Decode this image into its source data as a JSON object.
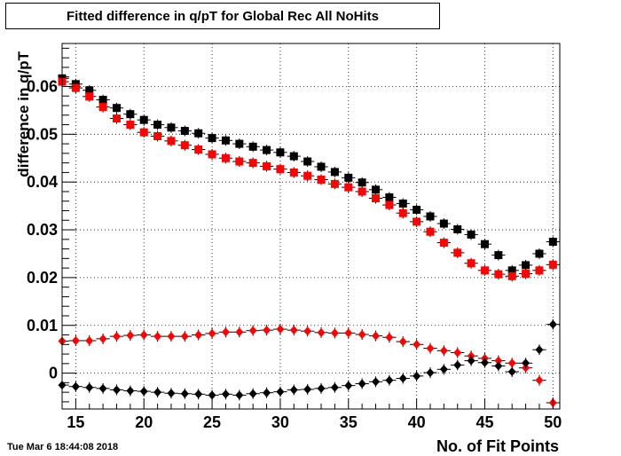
{
  "chart_data": {
    "type": "scatter",
    "title": "Fitted difference in q/pT for Global Rec All NoHits",
    "xlabel": "No. of Fit Points",
    "ylabel": "difference in q/pT",
    "xlim": [
      14,
      50.5
    ],
    "ylim": [
      -0.0075,
      0.069
    ],
    "xticks": [
      15,
      20,
      25,
      30,
      35,
      40,
      45,
      50
    ],
    "xtick_labels": [
      "15",
      "20",
      "25",
      "30",
      "35",
      "40",
      "45",
      "50"
    ],
    "yticks": [
      0,
      0.01,
      0.02,
      0.03,
      0.04,
      0.05,
      0.06
    ],
    "ytick_labels": [
      "0",
      "0.01",
      "0.02",
      "0.03",
      "0.04",
      "0.05",
      "0.06"
    ],
    "grid": true,
    "x": [
      14,
      15,
      16,
      17,
      18,
      19,
      20,
      21,
      22,
      23,
      24,
      25,
      26,
      27,
      28,
      29,
      30,
      31,
      32,
      33,
      34,
      35,
      36,
      37,
      38,
      39,
      40,
      41,
      42,
      43,
      44,
      45,
      46,
      47,
      48,
      49,
      50
    ],
    "series": [
      {
        "color": "#000000",
        "marker": "square",
        "values": [
          0.0617,
          0.0605,
          0.0592,
          0.0572,
          0.0555,
          0.0542,
          0.053,
          0.052,
          0.0514,
          0.0507,
          0.0502,
          0.0492,
          0.0487,
          0.048,
          0.0474,
          0.0467,
          0.0462,
          0.0454,
          0.0443,
          0.0432,
          0.0421,
          0.0409,
          0.0399,
          0.0384,
          0.0368,
          0.0355,
          0.0342,
          0.0328,
          0.0313,
          0.0301,
          0.029,
          0.027,
          0.0247,
          0.0215,
          0.0226,
          0.025,
          0.0275
        ]
      },
      {
        "color": "#ff0000",
        "marker": "square",
        "values": [
          0.061,
          0.0597,
          0.0579,
          0.0557,
          0.0533,
          0.052,
          0.0504,
          0.0496,
          0.0486,
          0.0477,
          0.0468,
          0.0458,
          0.045,
          0.0443,
          0.044,
          0.0433,
          0.0427,
          0.042,
          0.0413,
          0.0405,
          0.0396,
          0.0389,
          0.038,
          0.0366,
          0.0352,
          0.0335,
          0.0317,
          0.0296,
          0.0273,
          0.0252,
          0.023,
          0.0215,
          0.0207,
          0.0203,
          0.0208,
          0.0215,
          0.0227
        ]
      },
      {
        "color": "#ff0000",
        "marker": "diamond",
        "values": [
          0.0067,
          0.0068,
          0.0068,
          0.0072,
          0.0077,
          0.0079,
          0.008,
          0.0077,
          0.0077,
          0.0077,
          0.008,
          0.0083,
          0.0086,
          0.0086,
          0.0089,
          0.009,
          0.0092,
          0.009,
          0.0088,
          0.0085,
          0.0084,
          0.0084,
          0.0081,
          0.0078,
          0.0075,
          0.0066,
          0.006,
          0.0052,
          0.0047,
          0.0043,
          0.0036,
          0.0031,
          0.0026,
          0.0021,
          0.0011,
          -0.0015,
          -0.0062
        ]
      },
      {
        "color": "#000000",
        "marker": "diamond",
        "values": [
          -0.0025,
          -0.0028,
          -0.003,
          -0.0032,
          -0.0035,
          -0.0037,
          -0.0038,
          -0.004,
          -0.0042,
          -0.0043,
          -0.0044,
          -0.0046,
          -0.0044,
          -0.0046,
          -0.0043,
          -0.0041,
          -0.0039,
          -0.0035,
          -0.0034,
          -0.0032,
          -0.003,
          -0.0026,
          -0.0022,
          -0.0018,
          -0.0015,
          -0.0011,
          -0.0006,
          0.0001,
          0.0008,
          0.0017,
          0.0026,
          0.0022,
          0.0015,
          0.0003,
          0.0021,
          0.0049,
          0.0102
        ]
      }
    ]
  },
  "footer": {
    "timestamp": "Tue Mar  6 18:44:08 2018"
  }
}
